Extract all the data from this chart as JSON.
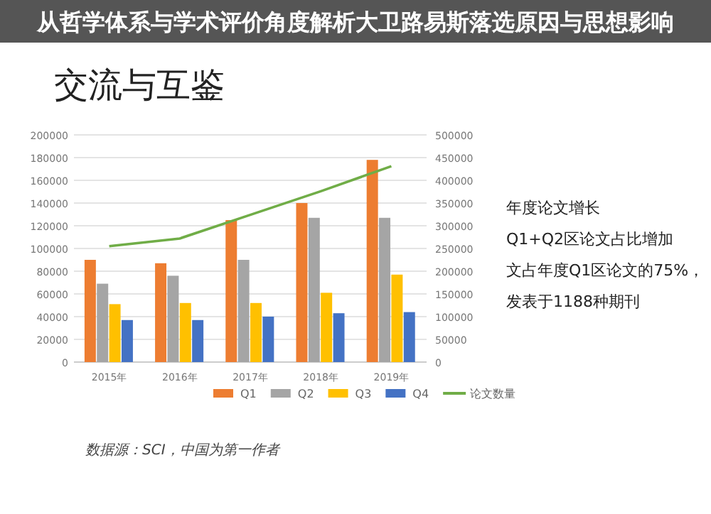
{
  "chart_data": {
    "type": "bar",
    "title": "交流与互鉴",
    "categories": [
      "2015年",
      "2016年",
      "2017年",
      "2018年",
      "2019年"
    ],
    "series": [
      {
        "name": "Q1",
        "color": "#ed7d31",
        "values": [
          90000,
          87000,
          125000,
          140000,
          178000
        ]
      },
      {
        "name": "Q2",
        "color": "#a5a5a5",
        "values": [
          69000,
          76000,
          90000,
          127000,
          127000
        ]
      },
      {
        "name": "Q3",
        "color": "#ffc000",
        "values": [
          51000,
          52000,
          52000,
          61000,
          77000
        ]
      },
      {
        "name": "Q4",
        "color": "#4472c4",
        "values": [
          37000,
          37000,
          40000,
          43000,
          44000
        ]
      },
      {
        "name": "论文数量",
        "type": "line",
        "axis": "y2",
        "color": "#70ad47",
        "values": [
          255000,
          272000,
          324000,
          376000,
          431000
        ]
      }
    ],
    "ylim": [
      0,
      200000
    ],
    "yticks": [
      0,
      20000,
      40000,
      60000,
      80000,
      100000,
      120000,
      140000,
      160000,
      180000,
      200000
    ],
    "y2lim": [
      0,
      500000
    ],
    "y2ticks": [
      0,
      50000,
      100000,
      150000,
      200000,
      250000,
      300000,
      350000,
      400000,
      450000,
      500000
    ],
    "grid": "y",
    "legend": "bottom",
    "annotations": [
      "从哲学体系与学术评价角度解析大卫路易斯落选原因与思想影响",
      "年度论文增长",
      "Q1+Q2区论文占比增加",
      "文占年度Q1区论文的75%，",
      "发表于1188种期刊",
      "数据源：SCI，中国为第一作者"
    ]
  }
}
